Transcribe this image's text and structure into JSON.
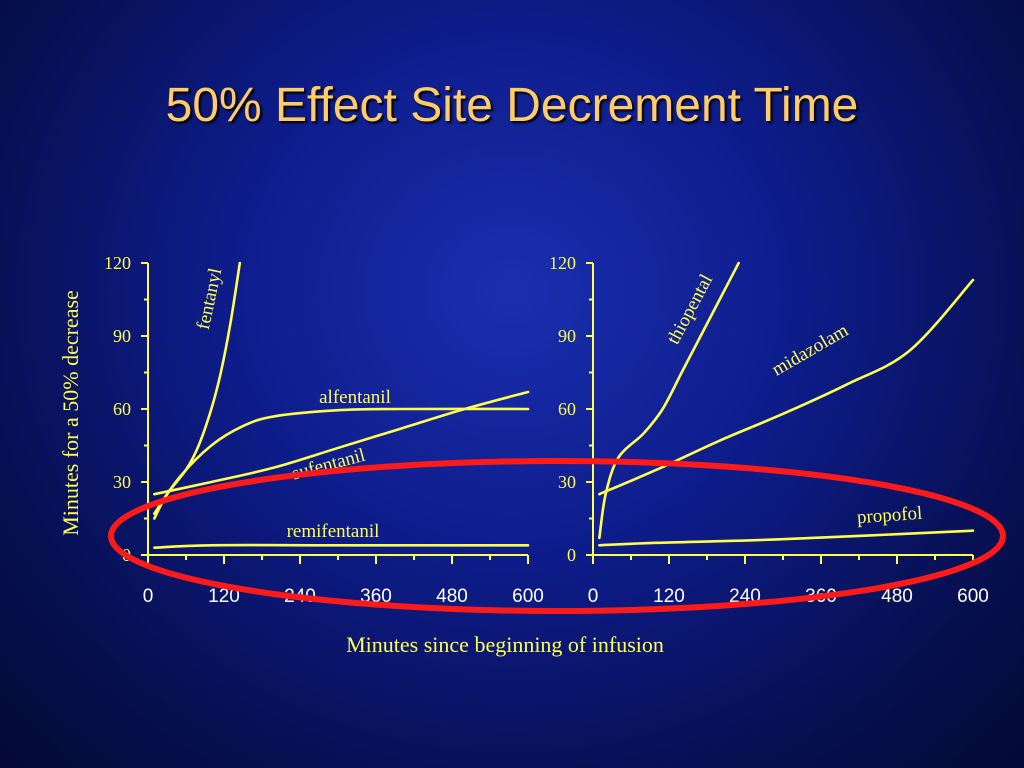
{
  "slide": {
    "title": "50% Effect Site Decrement Time"
  },
  "colors": {
    "curve": "#ffff4d",
    "axis": "#ffff4d",
    "text": "#ffff4d",
    "highlight_ellipse": "#ff1a1a"
  },
  "shared_ylabel": "Minutes for a 50% decrease",
  "shared_xlabel": "Minutes since beginning of infusion",
  "chart_data": [
    {
      "type": "line",
      "x_ticks": [
        0,
        120,
        240,
        360,
        480,
        600
      ],
      "y_ticks": [
        0,
        30,
        60,
        90,
        120
      ],
      "xlim": [
        0,
        600
      ],
      "ylim": [
        0,
        120
      ],
      "series": [
        {
          "name": "fentanyl",
          "points": [
            [
              10,
              15
            ],
            [
              30,
              25
            ],
            [
              60,
              35
            ],
            [
              80,
              45
            ],
            [
              100,
              60
            ],
            [
              115,
              75
            ],
            [
              130,
              95
            ],
            [
              145,
              120
            ]
          ]
        },
        {
          "name": "alfentanil",
          "points": [
            [
              10,
              17
            ],
            [
              50,
              32
            ],
            [
              100,
              45
            ],
            [
              150,
              53
            ],
            [
              200,
              57
            ],
            [
              300,
              59.5
            ],
            [
              400,
              60
            ],
            [
              600,
              60
            ]
          ]
        },
        {
          "name": "sufentanil",
          "points": [
            [
              10,
              25
            ],
            [
              100,
              30
            ],
            [
              200,
              36
            ],
            [
              300,
              44
            ],
            [
              400,
              52
            ],
            [
              500,
              60
            ],
            [
              600,
              67
            ]
          ]
        },
        {
          "name": "remifentanil",
          "points": [
            [
              10,
              3
            ],
            [
              100,
              4
            ],
            [
              300,
              4
            ],
            [
              600,
              4
            ]
          ]
        }
      ]
    },
    {
      "type": "line",
      "x_ticks": [
        0,
        120,
        240,
        360,
        480,
        600
      ],
      "y_ticks": [
        0,
        30,
        60,
        90,
        120
      ],
      "xlim": [
        0,
        600
      ],
      "ylim": [
        0,
        120
      ],
      "series": [
        {
          "name": "thiopental",
          "points": [
            [
              10,
              7
            ],
            [
              20,
              25
            ],
            [
              40,
              40
            ],
            [
              80,
              50
            ],
            [
              110,
              60
            ],
            [
              140,
              75
            ],
            [
              170,
              90
            ],
            [
              200,
              105
            ],
            [
              220,
              115
            ],
            [
              230,
              120
            ]
          ]
        },
        {
          "name": "midazolam",
          "points": [
            [
              10,
              25
            ],
            [
              100,
              35
            ],
            [
              200,
              47
            ],
            [
              300,
              58
            ],
            [
              400,
              70
            ],
            [
              500,
              84
            ],
            [
              600,
              113
            ]
          ]
        },
        {
          "name": "propofol",
          "points": [
            [
              10,
              4
            ],
            [
              100,
              5
            ],
            [
              300,
              6.5
            ],
            [
              600,
              10
            ]
          ]
        }
      ]
    }
  ]
}
